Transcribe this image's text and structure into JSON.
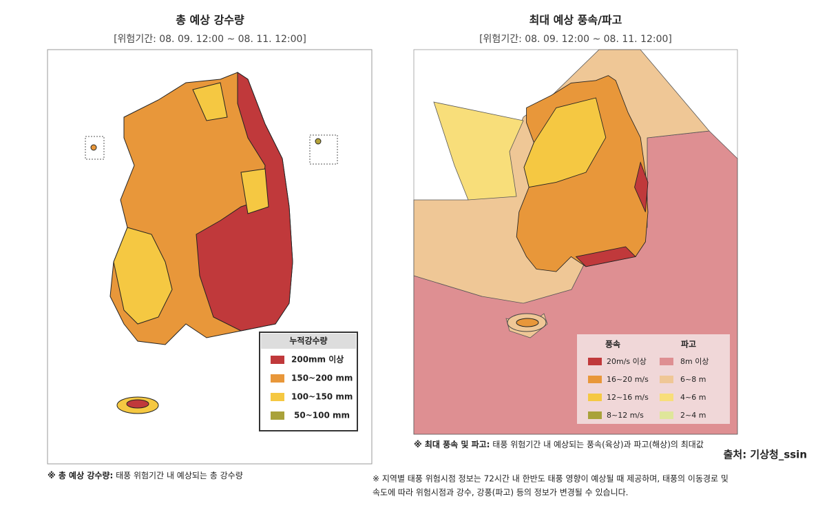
{
  "left": {
    "title": "총 예상 강수량",
    "period": "[위험기간: 08. 09. 12:00 ~ 08. 11. 12:00]",
    "legend": {
      "title": "누적강수량",
      "items": [
        "200mm 이상",
        "150~200 mm",
        "100~150 mm",
        "50~100 mm"
      ]
    },
    "note_label": "※ 총 예상 강수량:",
    "note": "태풍 위험기간 내 예상되는 총 강수량"
  },
  "right": {
    "title": "최대 예상 풍속/파고",
    "period": "[위험기간: 08. 09. 12:00 ~ 08. 11. 12:00]",
    "legend": {
      "wind_title": "풍속",
      "wave_title": "파고",
      "wind_items": [
        "20m/s 이상",
        "16~20 m/s",
        "12~16 m/s",
        "8~12 m/s"
      ],
      "wave_items": [
        "8m 이상",
        "6~8 m",
        "4~6 m",
        "2~4 m"
      ]
    },
    "note_label": "※ 최대 풍속 및 파고:",
    "note": "태풍 위험기간 내 예상되는 풍속(육상)과 파고(해상)의 최대값"
  },
  "source": "출처: 기상청_ssin",
  "footnote": [
    "※ 지역별 태풍 위험시점 정보는 72시간 내 한반도 태풍 영향이 예상될 때 제공하며, 태풍의 이동경로 및",
    "속도에 따라 위험시점과 강수, 강풍(파고) 등의 정보가 변경될 수 있습니다."
  ]
}
